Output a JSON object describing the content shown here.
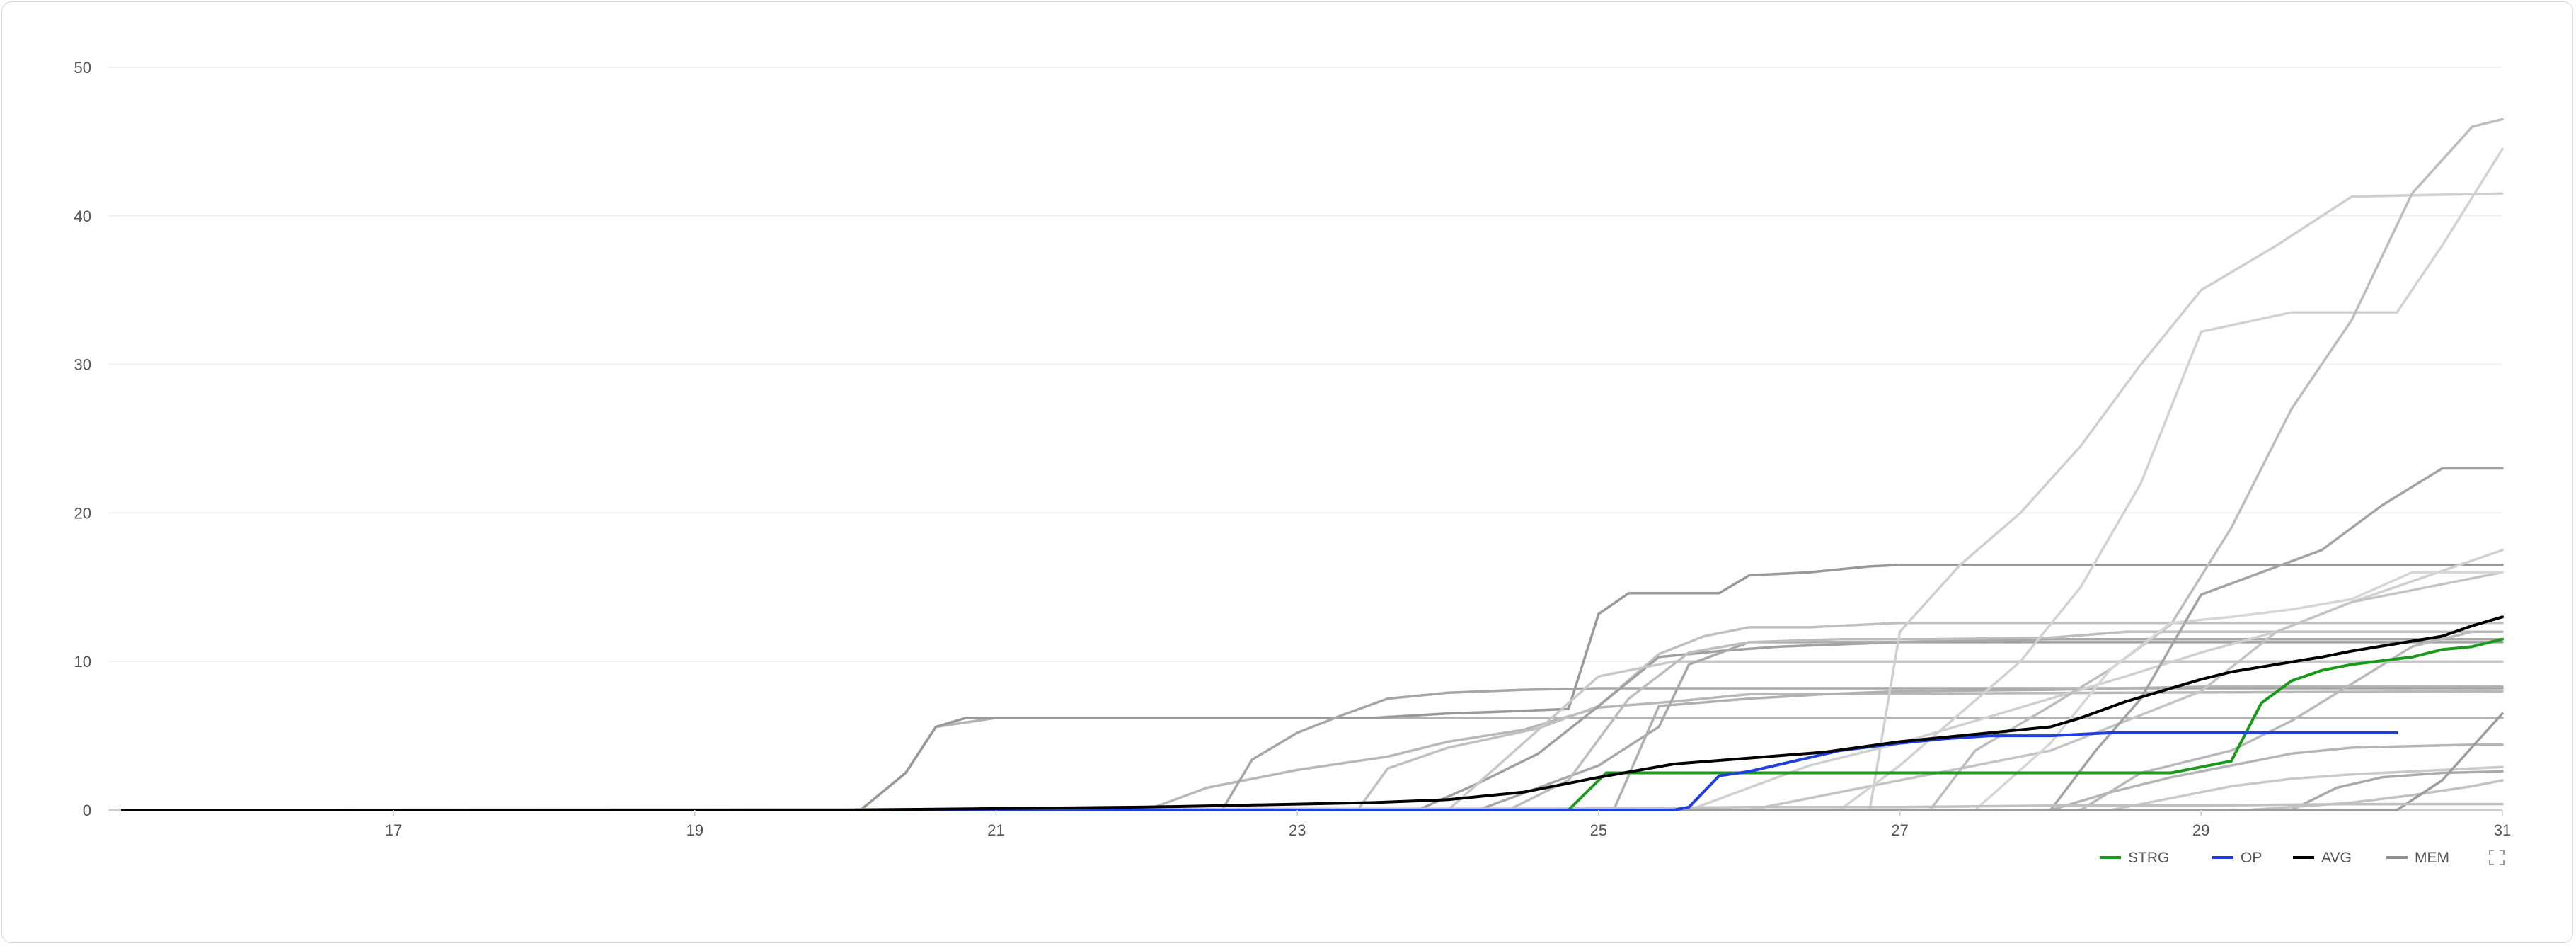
{
  "colors": {
    "strg": "#1a9a1a",
    "op": "#1f3fe0",
    "avg": "#000000",
    "mem": "#8f8f8f",
    "grid": "#eeeeee",
    "axis": "#cccccc"
  },
  "icons": {
    "fullscreen": "fullscreen-icon"
  },
  "chart_data": {
    "type": "line",
    "title": "",
    "xlabel": "",
    "ylabel": "",
    "xlim": [
      15.2,
      31
    ],
    "ylim": [
      0,
      50
    ],
    "grid": true,
    "legend_position": "bottom-right",
    "x_ticks": [
      17,
      19,
      21,
      23,
      25,
      27,
      29,
      31
    ],
    "y_ticks": [
      0,
      10,
      20,
      30,
      40,
      50
    ],
    "x_tick_labels": [
      "17",
      "19",
      "21",
      "23",
      "25",
      "27",
      "29",
      "31"
    ],
    "y_tick_labels": [
      "0",
      "10",
      "20",
      "30",
      "40",
      "50"
    ],
    "legend": [
      {
        "name": "STRG",
        "color": "#1a9a1a"
      },
      {
        "name": "OP",
        "color": "#1f3fe0"
      },
      {
        "name": "AVG",
        "color": "#000000"
      },
      {
        "name": "MEM",
        "color": "#8f8f8f"
      }
    ],
    "series": [
      {
        "name": "MEM",
        "color": "#b3b3b3",
        "x": [
          15.2,
          20.1,
          20.4,
          20.6,
          21,
          22,
          31
        ],
        "y": [
          0,
          0,
          2.5,
          5.6,
          6.2,
          6.2,
          6.2
        ]
      },
      {
        "name": "MEM",
        "color": "#999999",
        "x": [
          15.2,
          20.1,
          20.4,
          20.6,
          20.8,
          21,
          22,
          23,
          23.5,
          24,
          24.3,
          24.8,
          25,
          25.2,
          25.4,
          25.8,
          26.0,
          26.4,
          26.8,
          27,
          28,
          31
        ],
        "y": [
          0,
          0,
          2.5,
          5.6,
          6.2,
          6.2,
          6.2,
          6.2,
          6.2,
          6.5,
          6.6,
          6.8,
          13.2,
          14.6,
          14.6,
          14.6,
          15.8,
          16.0,
          16.4,
          16.5,
          16.5,
          16.5
        ]
      },
      {
        "name": "MEM",
        "color": "#b8b8b8",
        "x": [
          15.2,
          22,
          22.4,
          23,
          23.6,
          24,
          24.5,
          25,
          25.5,
          26,
          31
        ],
        "y": [
          0,
          0,
          1.5,
          2.7,
          3.6,
          4.6,
          5.4,
          6.9,
          7.3,
          7.8,
          8.0
        ]
      },
      {
        "name": "MEM",
        "color": "#a6a6a6",
        "x": [
          15.2,
          22.5,
          22.7,
          23,
          23.3,
          23.6,
          24,
          24.5,
          25,
          26,
          31
        ],
        "y": [
          0,
          0,
          3.4,
          5.2,
          6.4,
          7.5,
          7.9,
          8.1,
          8.2,
          8.2,
          8.2
        ]
      },
      {
        "name": "MEM",
        "color": "#c0c0c0",
        "x": [
          15.2,
          23.4,
          23.6,
          24,
          24.6,
          25,
          25.4,
          25.7,
          26,
          26.4,
          27,
          28,
          31
        ],
        "y": [
          0,
          0,
          2.8,
          4.2,
          5.5,
          7.0,
          10.5,
          11.7,
          12.3,
          12.3,
          12.6,
          12.6,
          12.6
        ]
      },
      {
        "name": "MEM",
        "color": "#a0a0a0",
        "x": [
          15.2,
          23.8,
          24.2,
          24.6,
          25,
          25.4,
          25.8,
          26.2,
          27,
          31
        ],
        "y": [
          0,
          0,
          1.8,
          3.8,
          7.0,
          10.3,
          10.7,
          11.0,
          11.3,
          11.3
        ]
      },
      {
        "name": "MEM",
        "color": "#c8c8c8",
        "x": [
          15.2,
          24.0,
          24.5,
          25,
          25.5,
          26,
          27,
          31
        ],
        "y": [
          0,
          0,
          4.5,
          9.0,
          10.0,
          10.0,
          10.0,
          10.0
        ]
      },
      {
        "name": "MEM",
        "color": "#a8a8a8",
        "x": [
          15.2,
          24.2,
          24.6,
          25,
          25.4,
          25.6,
          26,
          26.4,
          27,
          28,
          31
        ],
        "y": [
          0,
          0,
          1.5,
          3.0,
          5.6,
          9.8,
          11.3,
          11.3,
          11.3,
          11.5,
          11.5
        ]
      },
      {
        "name": "MEM",
        "color": "#bdbdbd",
        "x": [
          15.2,
          24.4,
          24.8,
          25.2,
          25.6,
          26,
          26.6,
          27.2,
          28,
          28.5,
          31
        ],
        "y": [
          0,
          0,
          2.0,
          7.5,
          10.6,
          11.3,
          11.5,
          11.5,
          11.6,
          12.0,
          12.0
        ]
      },
      {
        "name": "MEM",
        "color": "#b0b0b0",
        "x": [
          15.2,
          25.1,
          25.4,
          26,
          26.5,
          27,
          28,
          29,
          30,
          31
        ],
        "y": [
          0,
          0,
          7.0,
          7.5,
          7.8,
          8.0,
          8.1,
          8.3,
          8.3,
          8.3
        ]
      },
      {
        "name": "MEM",
        "color": "#d0d0d0",
        "x": [
          15.2,
          25.6,
          26,
          26.4,
          27,
          27.5,
          28,
          28.5,
          29,
          29.5,
          30,
          31
        ],
        "y": [
          0,
          0,
          1.5,
          3.0,
          4.5,
          6.0,
          7.5,
          9.0,
          10.6,
          12.0,
          14.0,
          17.5
        ]
      },
      {
        "name": "MEM",
        "color": "#c4c4c4",
        "x": [
          15.2,
          26.0,
          26.5,
          27,
          27.5,
          28,
          28.5,
          29,
          29.5,
          30,
          30.5,
          31
        ],
        "y": [
          0,
          0,
          1.0,
          2.0,
          3.0,
          4.0,
          6.0,
          8.0,
          12.0,
          14.0,
          15.0,
          16.0
        ]
      },
      {
        "name": "MEM",
        "color": "#cfcfcf",
        "x": [
          15.2,
          26.8,
          27,
          27.4,
          27.8,
          28.2,
          28.6,
          29,
          29.5,
          30,
          31
        ],
        "y": [
          0,
          0,
          12.0,
          16.5,
          20.0,
          24.5,
          30.0,
          35.0,
          38.0,
          41.3,
          41.5
        ]
      },
      {
        "name": "MEM",
        "color": "#d2d2d2",
        "x": [
          15.2,
          26.6,
          27,
          27.4,
          27.8,
          28.2,
          28.6,
          29,
          29.6,
          30,
          30.3,
          30.6,
          31
        ],
        "y": [
          0,
          0,
          3.0,
          6.5,
          10.0,
          15.0,
          22.0,
          32.2,
          33.5,
          33.5,
          33.5,
          38.0,
          44.5
        ]
      },
      {
        "name": "MEM",
        "color": "#bdbdbd",
        "x": [
          15.2,
          27.2,
          27.5,
          28,
          28.4,
          28.8,
          29.2,
          29.6,
          30,
          30.4,
          30.8,
          31
        ],
        "y": [
          0,
          0,
          4.0,
          7.0,
          9.5,
          12.5,
          19.0,
          27.0,
          33.0,
          41.5,
          46.0,
          46.5
        ]
      },
      {
        "name": "MEM",
        "color": "#d6d6d6",
        "x": [
          15.2,
          27.5,
          28,
          28.4,
          28.8,
          29.2,
          29.6,
          30,
          30.4,
          30.8,
          31
        ],
        "y": [
          0,
          0,
          4.5,
          9.5,
          12.6,
          13.0,
          13.5,
          14.2,
          16.0,
          16.0,
          16.0
        ]
      },
      {
        "name": "MEM",
        "color": "#a3a3a3",
        "x": [
          15.2,
          28.0,
          28.3,
          28.6,
          29,
          29.4,
          29.8,
          30.2,
          30.6,
          31
        ],
        "y": [
          0,
          0,
          4.0,
          7.5,
          14.5,
          16.0,
          17.5,
          20.5,
          23.0,
          23.0
        ]
      },
      {
        "name": "MEM",
        "color": "#b5b5b5",
        "x": [
          15.2,
          28.0,
          28.4,
          28.8,
          29.2,
          29.6,
          30,
          30.4,
          30.8,
          31
        ],
        "y": [
          0,
          0,
          1.2,
          2.2,
          3.0,
          3.8,
          4.2,
          4.3,
          4.4,
          4.4
        ]
      },
      {
        "name": "MEM",
        "color": "#c9c9c9",
        "x": [
          15.2,
          28.4,
          28.8,
          29.2,
          29.6,
          30,
          30.4,
          30.8,
          31
        ],
        "y": [
          0,
          0,
          0.8,
          1.6,
          2.1,
          2.4,
          2.6,
          2.8,
          2.9
        ]
      },
      {
        "name": "MEM",
        "color": "#b9b9b9",
        "x": [
          15.2,
          28.2,
          28.6,
          29.2,
          29.6,
          30,
          30.4,
          30.8,
          31
        ],
        "y": [
          0,
          0,
          2.5,
          4.0,
          6.0,
          8.5,
          11.0,
          12.0,
          12.0
        ]
      },
      {
        "name": "MEM",
        "color": "#aaaaaa",
        "x": [
          15.2,
          29.6,
          29.9,
          30.2,
          30.6,
          31
        ],
        "y": [
          0,
          0,
          1.5,
          2.2,
          2.5,
          2.6
        ]
      },
      {
        "name": "MEM",
        "color": "#c2c2c2",
        "x": [
          15.2,
          29.3,
          29.6,
          30,
          30.4,
          30.8,
          31
        ],
        "y": [
          0,
          0,
          0.2,
          0.5,
          1.0,
          1.6,
          2.0
        ]
      },
      {
        "name": "MEM",
        "color": "#9d9d9d",
        "x": [
          15.2,
          30.3,
          30.6,
          31
        ],
        "y": [
          0,
          0,
          2.0,
          6.5
        ]
      },
      {
        "name": "MEM",
        "color": "#c0c0c0",
        "x": [
          15.2,
          25.0,
          26,
          27,
          28,
          29,
          30,
          31
        ],
        "y": [
          0,
          0.1,
          0.2,
          0.2,
          0.3,
          0.3,
          0.4,
          0.4
        ]
      },
      {
        "name": "STRG",
        "color": "#1a9a1a",
        "x": [
          15.2,
          24.8,
          25.05,
          25.3,
          26,
          26.6,
          27,
          28,
          28.5,
          28.8,
          29.0,
          29.2,
          29.4,
          29.6,
          29.8,
          30,
          30.4,
          30.6,
          30.8,
          31
        ],
        "y": [
          0,
          0,
          2.5,
          2.5,
          2.5,
          2.5,
          2.5,
          2.5,
          2.5,
          2.5,
          2.9,
          3.3,
          7.2,
          8.7,
          9.4,
          9.8,
          10.3,
          10.8,
          11.0,
          11.5
        ]
      },
      {
        "name": "OP",
        "color": "#1f3fe0",
        "x": [
          15.2,
          25.5,
          25.6,
          25.8,
          26,
          26.3,
          26.6,
          27,
          27.3,
          27.6,
          28,
          28.4,
          28.8,
          29.2,
          29.6,
          30.0,
          30.3
        ],
        "y": [
          0,
          0,
          0.2,
          2.3,
          2.6,
          3.3,
          4.0,
          4.5,
          4.8,
          5.0,
          5.0,
          5.2,
          5.2,
          5.2,
          5.2,
          5.2,
          5.2
        ]
      },
      {
        "name": "AVG",
        "color": "#000000",
        "x": [
          15.2,
          20,
          21,
          22,
          22.5,
          23,
          23.5,
          24,
          24.5,
          25,
          25.5,
          26,
          26.5,
          27,
          27.5,
          28,
          28.2,
          28.5,
          28.8,
          29,
          29.2,
          29.5,
          29.8,
          30,
          30.3,
          30.6,
          30.8,
          31
        ],
        "y": [
          0,
          0,
          0.1,
          0.2,
          0.3,
          0.4,
          0.5,
          0.7,
          1.2,
          2.2,
          3.1,
          3.5,
          3.9,
          4.6,
          5.1,
          5.6,
          6.2,
          7.3,
          8.2,
          8.8,
          9.3,
          9.8,
          10.3,
          10.7,
          11.2,
          11.7,
          12.4,
          13.0
        ]
      }
    ]
  }
}
